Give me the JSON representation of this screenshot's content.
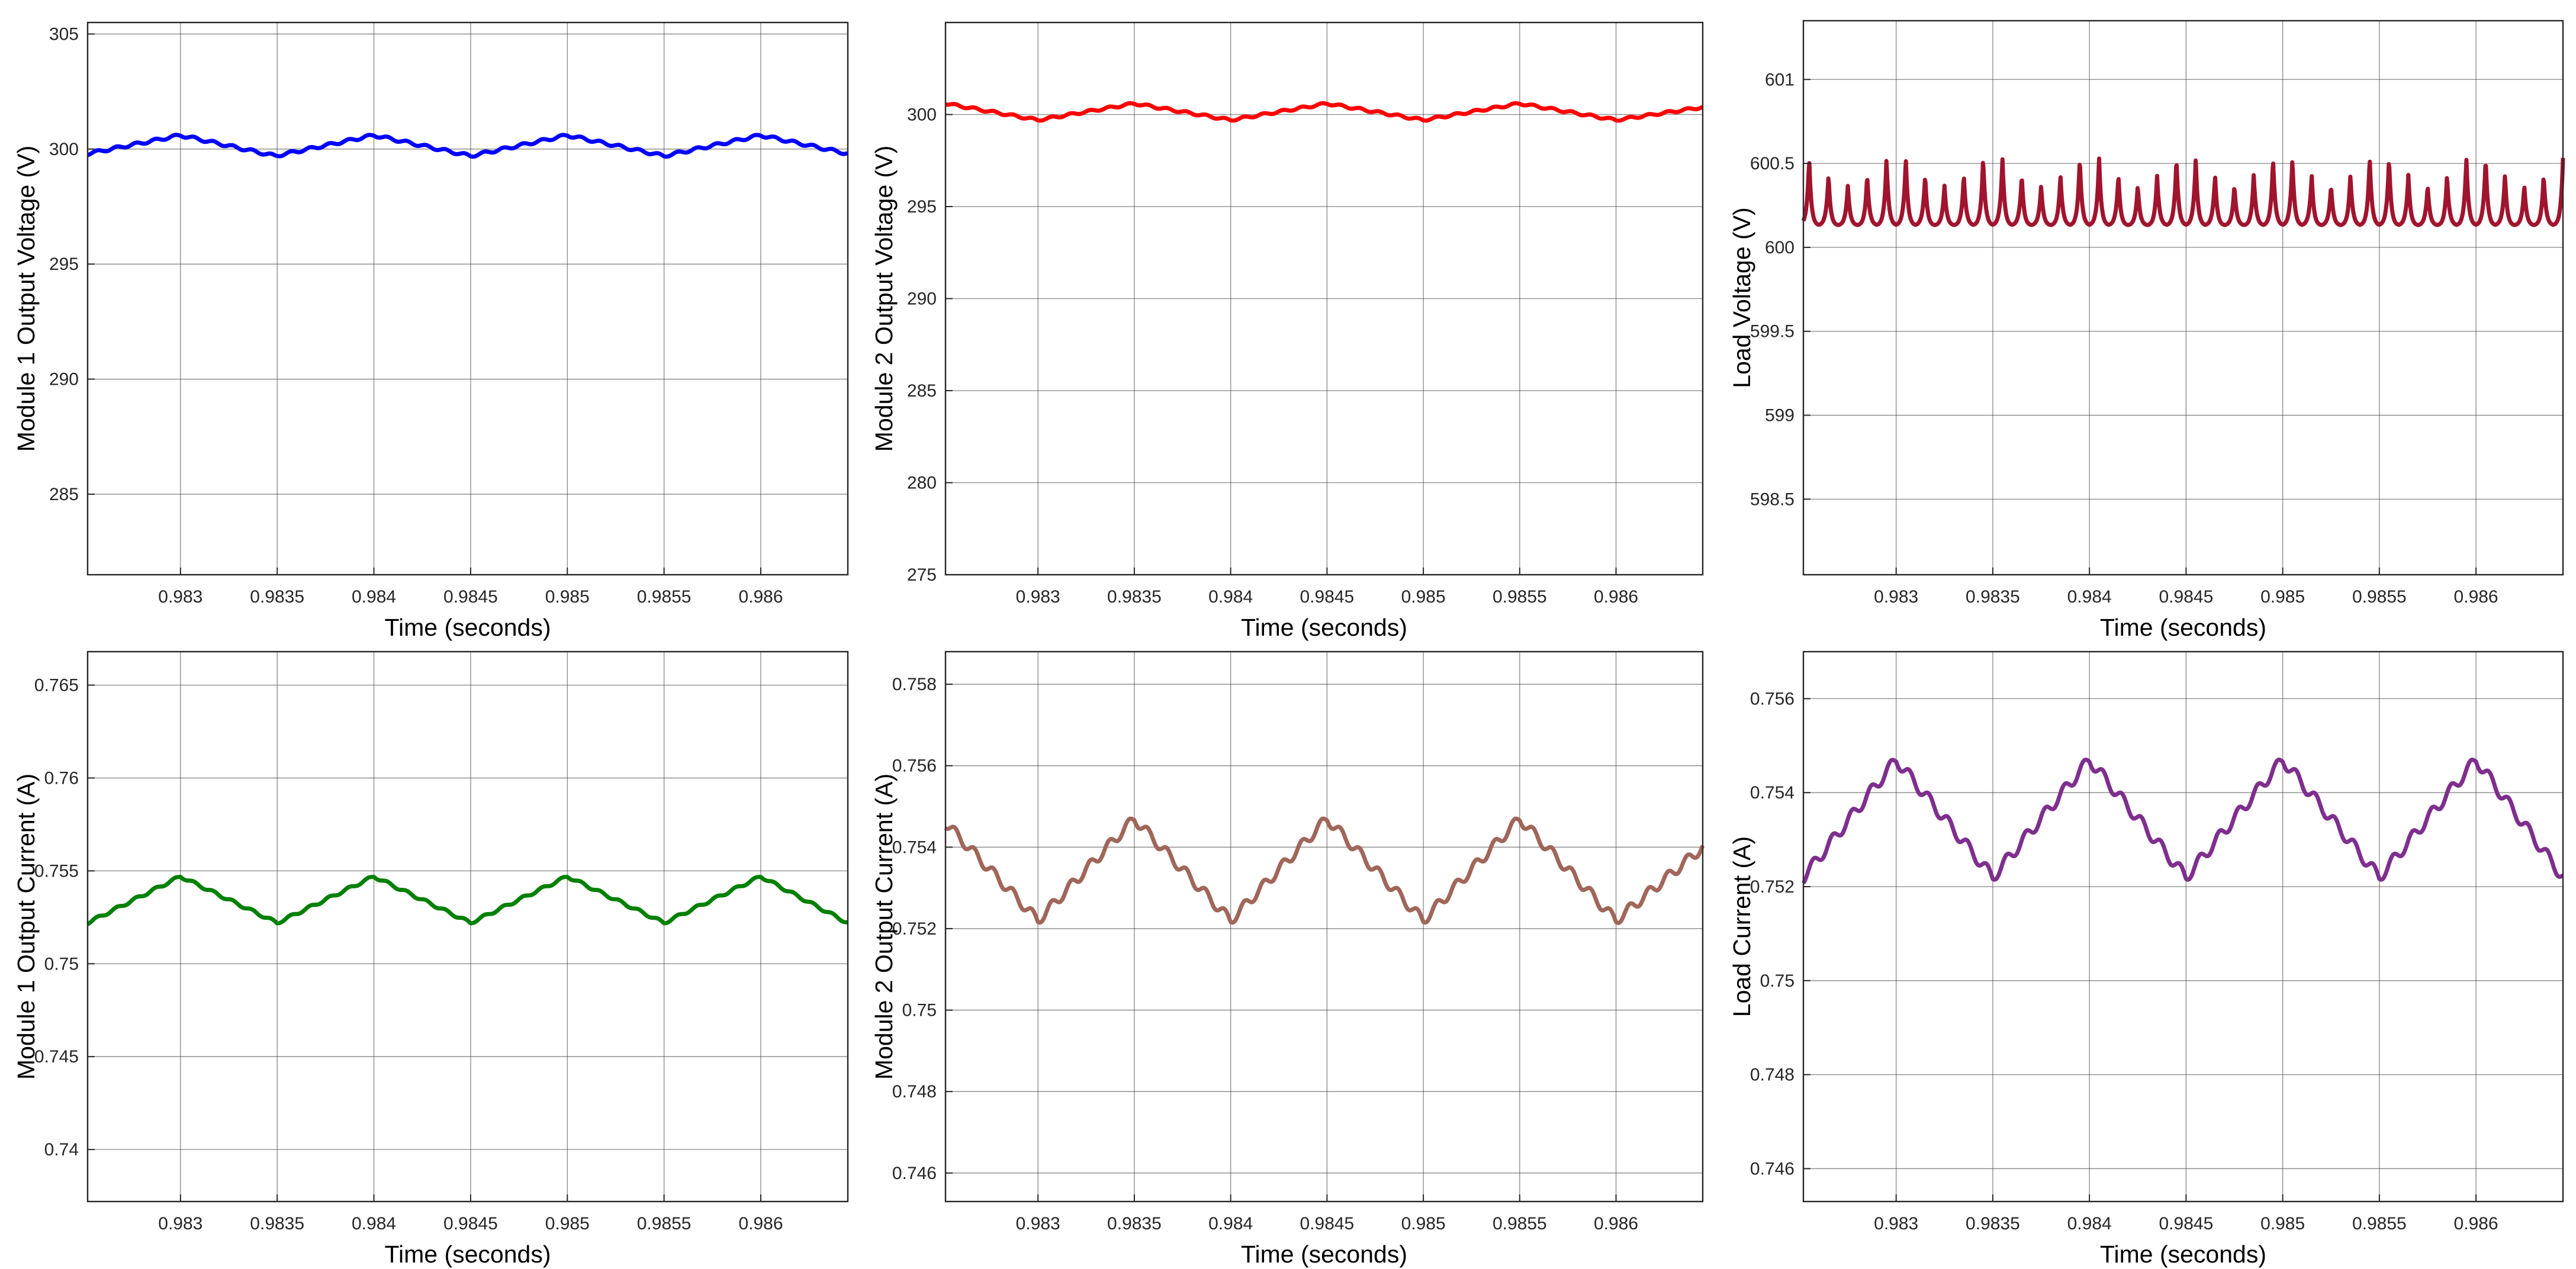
{
  "figure": {
    "charts": [
      {
        "type": "line",
        "xlabel": "Time (seconds)",
        "ylabel": "Module 1 Output Voltage (V)",
        "xlim": [
          0.98252,
          0.98645
        ],
        "ylim": [
          281.5,
          305.5
        ],
        "xticks": [
          0.983,
          0.9835,
          0.984,
          0.9845,
          0.985,
          0.9855,
          0.986
        ],
        "xticklabels": [
          "0.983",
          "0.9835",
          "0.984",
          "0.9845",
          "0.985",
          "0.9855",
          "0.986"
        ],
        "yticks": [
          285,
          290,
          295,
          300,
          305
        ],
        "yticklabels": [
          "285",
          "290",
          "295",
          "300",
          "305"
        ],
        "grid": true,
        "color": "#0000ff",
        "x": [
          0.98252,
          0.983,
          0.98349,
          0.984,
          0.9845,
          0.985,
          0.9855,
          0.986,
          0.98645
        ],
        "y": [
          299.8,
          300.6,
          299.7,
          300.6,
          299.7,
          300.6,
          299.7,
          300.6,
          299.8
        ],
        "ripple": {
          "amp": 0.12,
          "period": 0.0001
        }
      },
      {
        "type": "line",
        "xlabel": "Time (seconds)",
        "ylabel": "Module 2 Output Voltage (V)",
        "xlim": [
          0.98252,
          0.98645
        ],
        "ylim": [
          275,
          305
        ],
        "xticks": [
          0.983,
          0.9835,
          0.984,
          0.9845,
          0.985,
          0.9855,
          0.986
        ],
        "xticklabels": [
          "0.983",
          "0.9835",
          "0.984",
          "0.9845",
          "0.985",
          "0.9855",
          "0.986"
        ],
        "yticks": [
          275,
          280,
          285,
          290,
          295,
          300
        ],
        "yticklabels": [
          "275",
          "280",
          "285",
          "290",
          "295",
          "300"
        ],
        "grid": true,
        "color": "#ff0000",
        "x": [
          0.98252,
          0.983,
          0.9835,
          0.984,
          0.9845,
          0.985,
          0.9855,
          0.986,
          0.98645
        ],
        "y": [
          300.6,
          299.7,
          300.6,
          299.7,
          300.6,
          299.7,
          300.6,
          299.7,
          300.4
        ],
        "ripple": {
          "amp": 0.12,
          "period": 0.0001
        }
      },
      {
        "type": "line",
        "xlabel": "Time (seconds)",
        "ylabel": "Load Voltage (V)",
        "xlim": [
          0.98252,
          0.98645
        ],
        "ylim": [
          598.05,
          601.35
        ],
        "xticks": [
          0.983,
          0.9835,
          0.984,
          0.9845,
          0.985,
          0.9855,
          0.986
        ],
        "xticklabels": [
          "0.983",
          "0.9835",
          "0.984",
          "0.9845",
          "0.985",
          "0.9855",
          "0.986"
        ],
        "yticks": [
          598.5,
          599,
          599.5,
          600,
          600.5,
          601
        ],
        "yticklabels": [
          "598.5",
          "599",
          "599.5",
          "600",
          "600.5",
          "601"
        ],
        "grid": true,
        "color": "#a0142e",
        "spiky": {
          "period": 0.0001,
          "base": 600.13,
          "peakMin": 600.37,
          "peakMax": 600.55,
          "envelopePeriod": 0.0005
        }
      },
      {
        "type": "line",
        "xlabel": "Time (seconds)",
        "ylabel": "Module 1 Output Current (A)",
        "xlim": [
          0.98252,
          0.98645
        ],
        "ylim": [
          0.7372,
          0.7668
        ],
        "xticks": [
          0.983,
          0.9835,
          0.984,
          0.9845,
          0.985,
          0.9855,
          0.986
        ],
        "xticklabels": [
          "0.983",
          "0.9835",
          "0.984",
          "0.9845",
          "0.985",
          "0.9855",
          "0.986"
        ],
        "yticks": [
          0.74,
          0.745,
          0.75,
          0.755,
          0.76,
          0.765
        ],
        "yticklabels": [
          "0.74",
          "0.745",
          "0.75",
          "0.755",
          "0.76",
          "0.765"
        ],
        "grid": true,
        "color": "#008000",
        "x": [
          0.98252,
          0.983,
          0.9835,
          0.984,
          0.9845,
          0.985,
          0.9855,
          0.986,
          0.98645
        ],
        "y": [
          0.7522,
          0.7547,
          0.7522,
          0.7547,
          0.7522,
          0.7547,
          0.7522,
          0.7547,
          0.7522
        ],
        "ripple": {
          "amp": 0.00015,
          "period": 0.0001
        }
      },
      {
        "type": "line",
        "xlabel": "Time (seconds)",
        "ylabel": "Module 2 Output Current (A)",
        "xlim": [
          0.98252,
          0.98645
        ],
        "ylim": [
          0.7453,
          0.7588
        ],
        "xticks": [
          0.983,
          0.9835,
          0.984,
          0.9845,
          0.985,
          0.9855,
          0.986
        ],
        "xticklabels": [
          "0.983",
          "0.9835",
          "0.984",
          "0.9845",
          "0.985",
          "0.9855",
          "0.986"
        ],
        "yticks": [
          0.746,
          0.748,
          0.75,
          0.752,
          0.754,
          0.756,
          0.758
        ],
        "yticklabels": [
          "0.746",
          "0.748",
          "0.75",
          "0.752",
          "0.754",
          "0.756",
          "0.758"
        ],
        "grid": true,
        "color": "#a0665a",
        "x": [
          0.98252,
          0.983,
          0.9835,
          0.984,
          0.9845,
          0.985,
          0.9855,
          0.986,
          0.98645
        ],
        "y": [
          0.7546,
          0.7522,
          0.7547,
          0.7522,
          0.7547,
          0.7522,
          0.7547,
          0.7522,
          0.754
        ],
        "ripple": {
          "amp": 0.00025,
          "period": 0.0001
        }
      },
      {
        "type": "line",
        "xlabel": "Time (seconds)",
        "ylabel": "Load Current (A)",
        "xlim": [
          0.98252,
          0.98645
        ],
        "ylim": [
          0.7453,
          0.757
        ],
        "xticks": [
          0.983,
          0.9835,
          0.984,
          0.9845,
          0.985,
          0.9855,
          0.986
        ],
        "xticklabels": [
          "0.983",
          "0.9835",
          "0.984",
          "0.9845",
          "0.985",
          "0.9855",
          "0.986"
        ],
        "yticks": [
          0.746,
          0.748,
          0.75,
          0.752,
          0.754,
          0.756
        ],
        "yticklabels": [
          "0.746",
          "0.748",
          "0.75",
          "0.752",
          "0.754",
          "0.756"
        ],
        "grid": true,
        "color": "#7e2f8e",
        "x": [
          0.98252,
          0.983,
          0.9835,
          0.984,
          0.9845,
          0.985,
          0.9855,
          0.986,
          0.98645
        ],
        "y": [
          0.7522,
          0.7547,
          0.7522,
          0.7547,
          0.7522,
          0.7547,
          0.7522,
          0.7547,
          0.7522
        ],
        "ripple": {
          "amp": 0.00025,
          "period": 0.0001
        }
      }
    ]
  }
}
